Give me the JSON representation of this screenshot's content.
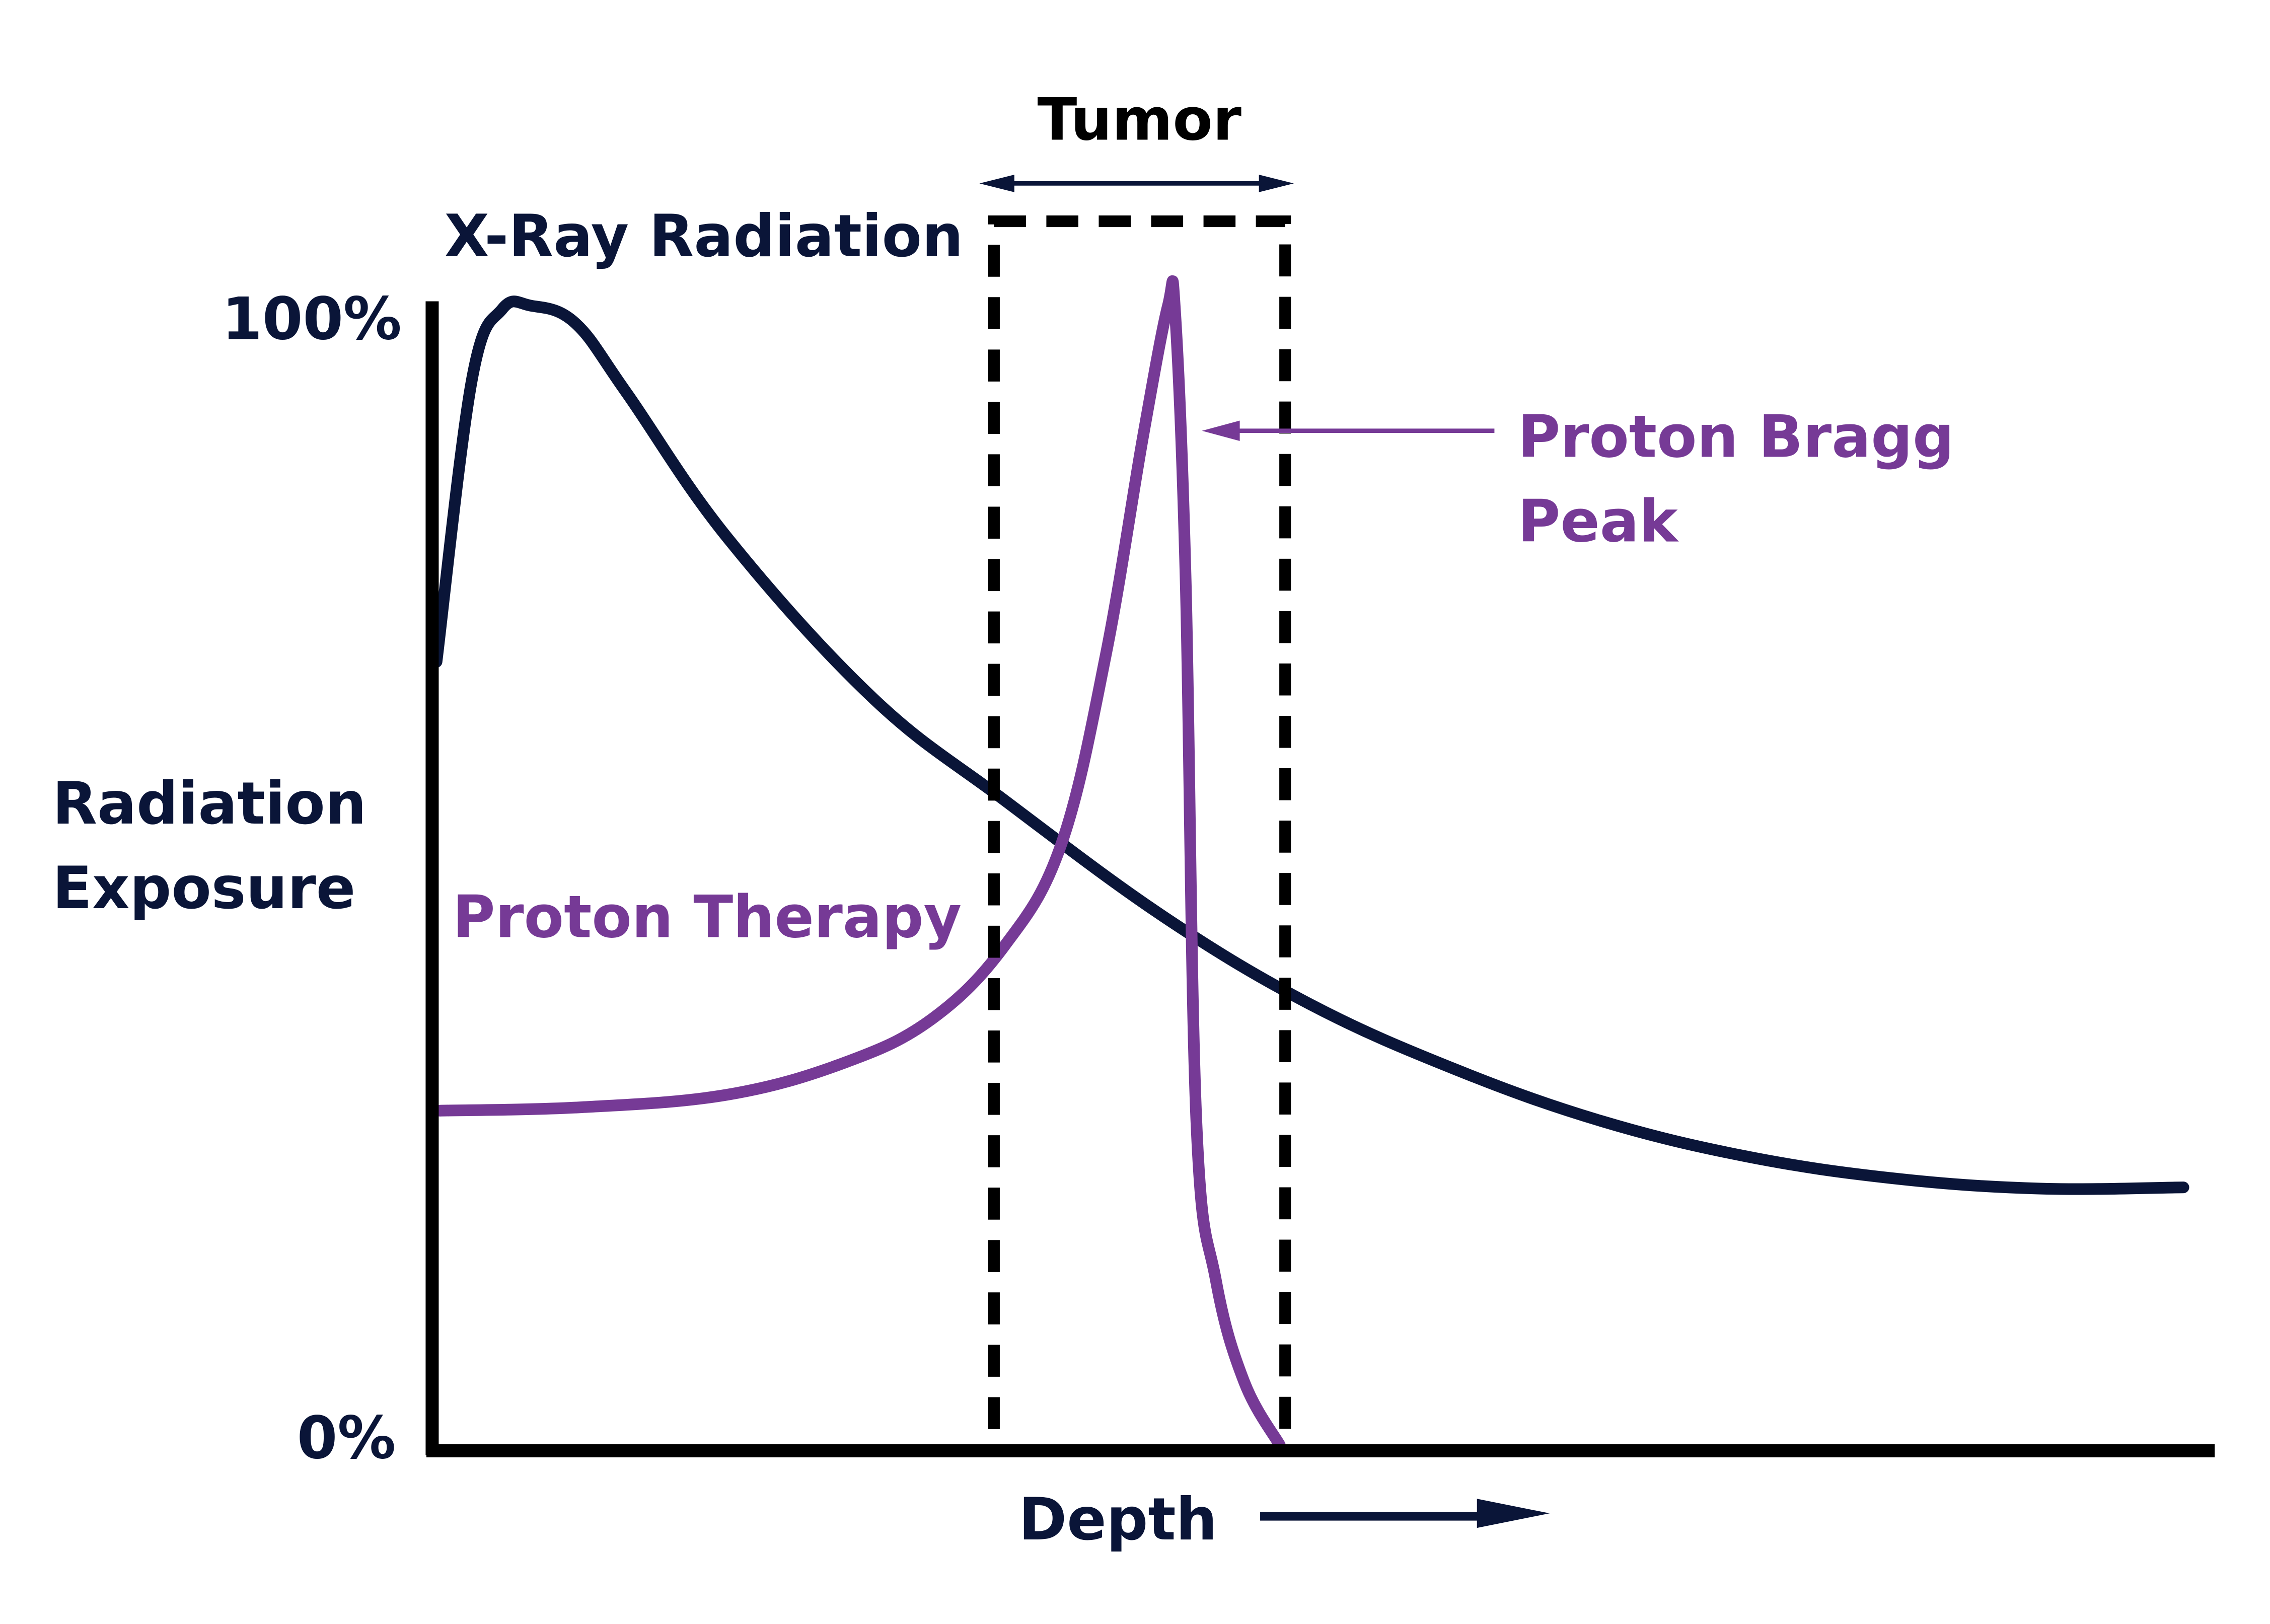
{
  "colors": {
    "xray": "#0a1538",
    "proton": "#763a96",
    "axis": "#000000"
  },
  "chart_data": {
    "type": "line",
    "title": "",
    "xlabel": "Depth",
    "ylabel_line1": "Radiation",
    "ylabel_line2": "Exposure",
    "ytick_top": "100%",
    "ytick_bottom": "0%",
    "ylim": [
      0,
      100
    ],
    "xlim": [
      0,
      100
    ],
    "grid": false,
    "series": [
      {
        "name": "X-Ray Radiation",
        "color": "#0a1538",
        "x": [
          0,
          2.0,
          3.7,
          5.3,
          7.8,
          10.7,
          16.4,
          24.6,
          32.0,
          41.0,
          49.2,
          57.4,
          65.6,
          73.8,
          82.0,
          90.2,
          98.4
        ],
        "y": [
          68.9,
          93.6,
          99.7,
          100,
          98.5,
          92.4,
          79.7,
          65.7,
          56.8,
          46.6,
          39.0,
          33.3,
          28.8,
          25.7,
          23.8,
          22.9,
          23.0
        ]
      },
      {
        "name": "Proton Therapy",
        "color": "#763a96",
        "x": [
          0.2,
          8.2,
          16.4,
          23.0,
          27.9,
          32.0,
          35.2,
          37.7,
          39.8,
          41.2,
          41.6,
          42.2,
          42.8,
          43.9,
          45.5,
          47.5
        ],
        "y": [
          29.7,
          30.0,
          31.1,
          33.9,
          37.7,
          44.1,
          53.0,
          69.5,
          88.6,
          100,
          99.5,
          75.9,
          28.8,
          14.9,
          6.0,
          0.5
        ]
      }
    ],
    "annotations": {
      "tumor_label": "Tumor",
      "tumor_range": [
        31.4,
        47.8
      ],
      "bragg_line1": "Proton Bragg",
      "bragg_line2": "Peak",
      "xray_label": "X-Ray Radiation",
      "proton_label": "Proton Therapy"
    }
  }
}
